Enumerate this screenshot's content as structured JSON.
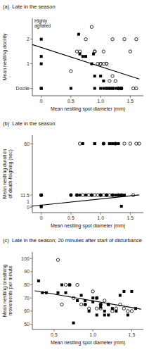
{
  "chart_data": [
    {
      "type": "scatter",
      "title": "(a)  Late in the season",
      "y_label": "Mean nestling docility",
      "x_label": "Mean nestling spot diameter (mm)",
      "xlim": [
        -0.15,
        1.72
      ],
      "ylim": [
        -0.3,
        2.85
      ],
      "xticks": [
        0,
        0.5,
        {
          "value": 1,
          "label": "1.0"
        },
        1.5
      ],
      "yticks": [
        {
          "value": 0,
          "label": "Docile"
        },
        1,
        2
      ],
      "grid": false,
      "annotations": [
        {
          "text": "Highly\nagitated"
        }
      ],
      "series": [
        {
          "marker": "square",
          "color": "#000000",
          "x": [
            0.0,
            0.0,
            0.0,
            0.0,
            0.63,
            0.65,
            0.7,
            0.75,
            0.85,
            0.88,
            0.9,
            0.9,
            1.0,
            1.0,
            1.05,
            1.05,
            1.1,
            1.1,
            1.15,
            1.15,
            1.2,
            1.2,
            1.25,
            1.3,
            1.3,
            1.35,
            1.35,
            0.0,
            0.5
          ],
          "values": [
            2.0,
            1.3,
            1.0,
            0.0,
            2.2,
            1.4,
            1.3,
            1.3,
            1.0,
            1.4,
            0.5,
            0.0,
            0.5,
            0.0,
            0.3,
            0.0,
            0.0,
            0.0,
            0.0,
            0.0,
            0.0,
            0.0,
            0.0,
            0.0,
            0.0,
            0.0,
            0.0,
            0.0,
            0.0
          ]
        },
        {
          "marker": "circle",
          "color": "#000000",
          "x": [
            0.5,
            0.6,
            0.65,
            0.75,
            0.85,
            0.9,
            0.95,
            1.0,
            1.0,
            1.05,
            1.05,
            1.1,
            1.1,
            1.15,
            1.2,
            1.2,
            1.25,
            1.3,
            1.35,
            1.4,
            1.5,
            1.55,
            1.6,
            1.6,
            0.9
          ],
          "values": [
            0.7,
            1.5,
            1.5,
            2.0,
            2.5,
            1.5,
            1.0,
            1.0,
            1.0,
            1.5,
            1.0,
            1.0,
            1.0,
            0.3,
            0.5,
            2.0,
            0.3,
            0.0,
            0.0,
            2.0,
            1.5,
            0.0,
            2.0,
            0.0,
            1.5
          ]
        },
        {
          "type": "line",
          "line_style": "solid",
          "color": "#000000",
          "x": [
            -0.15,
            1.65
          ],
          "values": [
            1.78,
            0.38
          ]
        }
      ]
    },
    {
      "type": "scatter",
      "title": "(b)  Late in the season",
      "y_label": "Mean nestling duration\nof death-feigning (sec)",
      "x_label": "Mean nestling spot diameter (mm)",
      "xlim": [
        -0.15,
        1.72
      ],
      "ylim": [
        -5,
        68
      ],
      "xticks": [
        0,
        0.5,
        {
          "value": 1,
          "label": "1.0"
        },
        1.5
      ],
      "yticks": [
        0,
        1,
        11.5,
        60
      ],
      "grid": false,
      "series": [
        {
          "marker": "square",
          "color": "#000000",
          "x": [
            0.0,
            0.0,
            0.0,
            0.0,
            0.5,
            0.6,
            0.7,
            0.75,
            0.85,
            0.9,
            0.9,
            1.0,
            1.0,
            1.05,
            1.1,
            1.1,
            1.1,
            1.15,
            1.15,
            1.2,
            1.2,
            1.25,
            1.25,
            1.3,
            1.3,
            1.35,
            1.35,
            1.4,
            0.0,
            0.65
          ],
          "values": [
            1.1,
            11.5,
            11.5,
            0.5,
            11.5,
            11.5,
            60.0,
            11.5,
            11.5,
            60.0,
            60.0,
            11.5,
            11.5,
            60.0,
            11.5,
            11.5,
            11.5,
            60.0,
            60.0,
            11.5,
            60.0,
            60.0,
            11.5,
            60.0,
            11.5,
            11.5,
            1.0,
            11.5,
            11.5,
            11.5
          ]
        },
        {
          "marker": "circle",
          "color": "#000000",
          "x": [
            0.0,
            0.5,
            0.6,
            0.65,
            0.7,
            0.8,
            0.9,
            0.95,
            1.0,
            1.05,
            1.05,
            1.1,
            1.15,
            1.2,
            1.25,
            1.3,
            1.35,
            1.4,
            1.5,
            1.55,
            1.6,
            1.65,
            0.85
          ],
          "values": [
            11.5,
            11.5,
            11.5,
            60.0,
            11.5,
            11.5,
            11.5,
            11.5,
            11.5,
            11.5,
            60.0,
            11.5,
            11.5,
            11.5,
            60.0,
            11.5,
            11.5,
            60.0,
            60.0,
            11.5,
            60.0,
            60.0,
            11.5
          ]
        },
        {
          "type": "line",
          "line_style": "solid",
          "color": "#000000",
          "x": [
            -0.15,
            1.65
          ],
          "values": [
            1.15,
            11.65
          ]
        }
      ]
    },
    {
      "type": "scatter",
      "title": "(c)  Late in the season; 20 minutes after start of disturbance",
      "y_label": "Mean nestling breathing\nmovements per minute",
      "x_label": "Mean nestling spot diameter (mm)",
      "xlim": [
        0.22,
        1.65
      ],
      "ylim": [
        46,
        105
      ],
      "xticks": [
        0.5,
        {
          "value": 1,
          "label": "1.0"
        },
        1.5
      ],
      "yticks": [
        50,
        60,
        70,
        80,
        90,
        100
      ],
      "grid": false,
      "series": [
        {
          "marker": "square",
          "color": "#000000",
          "x": [
            0.3,
            0.35,
            0.55,
            0.6,
            0.65,
            0.7,
            0.75,
            0.8,
            0.85,
            0.9,
            0.9,
            0.95,
            1.0,
            1.0,
            1.05,
            1.05,
            1.1,
            1.1,
            1.15,
            1.15,
            1.2,
            1.2,
            1.25,
            1.3,
            1.35,
            1.4,
            1.45,
            1.5,
            1.55,
            0.4
          ],
          "values": [
            83.0,
            74.0,
            74.0,
            80.0,
            74.0,
            80.0,
            51.0,
            68.0,
            72.0,
            68.0,
            65.0,
            60.0,
            70.0,
            67.0,
            70.0,
            57.0,
            65.0,
            63.0,
            60.0,
            57.0,
            65.0,
            57.0,
            62.0,
            60.0,
            72.0,
            75.0,
            57.0,
            75.0,
            62.0,
            74.0
          ]
        },
        {
          "marker": "circle",
          "color": "#000000",
          "x": [
            0.55,
            0.65,
            0.7,
            0.75,
            0.8,
            0.85,
            0.9,
            0.95,
            1.0,
            1.05,
            1.05,
            1.1,
            1.1,
            1.15,
            1.2,
            1.25,
            1.3,
            1.35,
            1.4,
            1.45,
            1.5,
            0.6
          ],
          "values": [
            99.0,
            80.0,
            80.0,
            70.0,
            80.0,
            65.0,
            65.0,
            62.0,
            75.0,
            70.0,
            62.0,
            65.0,
            62.0,
            68.0,
            65.0,
            60.0,
            62.0,
            65.0,
            62.0,
            60.0,
            60.0,
            65.0
          ]
        },
        {
          "type": "line",
          "line_style": "solid",
          "color": "#000000",
          "x": [
            0.25,
            1.62
          ],
          "values": [
            75.5,
            61.5
          ]
        }
      ]
    }
  ]
}
